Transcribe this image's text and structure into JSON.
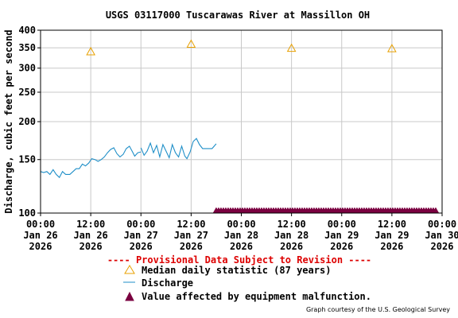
{
  "chart_data": {
    "type": "line",
    "title": "USGS 03117000 Tuscarawas River at Massillon OH",
    "ylabel": "Discharge, cubic feet per second",
    "ylim": [
      100,
      400
    ],
    "y_scale": "log",
    "y_ticks": [
      100,
      150,
      200,
      250,
      300,
      350,
      400
    ],
    "xlim": [
      "2026-01-26 00:00",
      "2026-01-30 00:00"
    ],
    "x_ticks": [
      {
        "time": "00:00",
        "date": "Jan 26",
        "year": "2026"
      },
      {
        "time": "12:00",
        "date": "Jan 26",
        "year": "2026"
      },
      {
        "time": "00:00",
        "date": "Jan 27",
        "year": "2026"
      },
      {
        "time": "12:00",
        "date": "Jan 27",
        "year": "2026"
      },
      {
        "time": "00:00",
        "date": "Jan 28",
        "year": "2026"
      },
      {
        "time": "12:00",
        "date": "Jan 28",
        "year": "2026"
      },
      {
        "time": "00:00",
        "date": "Jan 29",
        "year": "2026"
      },
      {
        "time": "12:00",
        "date": "Jan 29",
        "year": "2026"
      },
      {
        "time": "00:00",
        "date": "Jan 30",
        "year": "2026"
      }
    ],
    "grid": true,
    "series": [
      {
        "name": "Discharge",
        "color": "#1f8fc8",
        "segments": [
          [
            [
              "2026-01-26 00:00",
              137
            ],
            [
              "2026-01-26 00:45",
              136
            ],
            [
              "2026-01-26 01:30",
              137
            ],
            [
              "2026-01-26 02:15",
              134
            ],
            [
              "2026-01-26 03:00",
              139
            ],
            [
              "2026-01-26 03:45",
              134
            ],
            [
              "2026-01-26 04:30",
              131
            ],
            [
              "2026-01-26 05:15",
              137
            ],
            [
              "2026-01-26 06:00",
              134
            ],
            [
              "2026-01-26 07:00",
              134
            ],
            [
              "2026-01-26 07:45",
              137
            ],
            [
              "2026-01-26 08:30",
              140
            ],
            [
              "2026-01-26 09:15",
              140
            ],
            [
              "2026-01-26 10:00",
              145
            ],
            [
              "2026-01-26 10:45",
              143
            ],
            [
              "2026-01-26 11:30",
              146
            ],
            [
              "2026-01-26 12:15",
              151
            ],
            [
              "2026-01-26 13:00",
              150
            ],
            [
              "2026-01-26 13:45",
              148
            ],
            [
              "2026-01-26 14:30",
              150
            ],
            [
              "2026-01-26 15:15",
              153
            ],
            [
              "2026-01-26 16:00",
              158
            ],
            [
              "2026-01-26 16:45",
              162
            ],
            [
              "2026-01-26 17:30",
              164
            ],
            [
              "2026-01-26 18:15",
              157
            ],
            [
              "2026-01-26 19:00",
              153
            ],
            [
              "2026-01-26 19:45",
              156
            ],
            [
              "2026-01-26 20:30",
              163
            ],
            [
              "2026-01-26 21:15",
              166
            ],
            [
              "2026-01-26 22:00",
              159
            ],
            [
              "2026-01-26 22:30",
              154
            ],
            [
              "2026-01-26 23:15",
              158
            ],
            [
              "2026-01-27 00:00",
              159
            ]
          ],
          [
            [
              "2026-01-27 00:00",
              164
            ],
            [
              "2026-01-27 00:45",
              155
            ],
            [
              "2026-01-27 01:30",
              160
            ],
            [
              "2026-01-27 02:15",
              170
            ],
            [
              "2026-01-27 03:00",
              158
            ],
            [
              "2026-01-27 03:45",
              167
            ],
            [
              "2026-01-27 04:30",
              153
            ],
            [
              "2026-01-27 05:15",
              168
            ],
            [
              "2026-01-27 06:00",
              160
            ],
            [
              "2026-01-27 06:45",
              152
            ],
            [
              "2026-01-27 07:30",
              168
            ],
            [
              "2026-01-27 08:15",
              158
            ],
            [
              "2026-01-27 09:00",
              153
            ],
            [
              "2026-01-27 09:45",
              166
            ],
            [
              "2026-01-27 10:30",
              154
            ],
            [
              "2026-01-27 11:00",
              151
            ],
            [
              "2026-01-27 11:45",
              159
            ],
            [
              "2026-01-27 12:30",
              172
            ],
            [
              "2026-01-27 13:15",
              176
            ],
            [
              "2026-01-27 14:00",
              168
            ],
            [
              "2026-01-27 14:45",
              163
            ],
            [
              "2026-01-27 15:30",
              163
            ],
            [
              "2026-01-27 16:15",
              163
            ],
            [
              "2026-01-27 17:00",
              163
            ],
            [
              "2026-01-27 18:00",
              169
            ]
          ]
        ]
      },
      {
        "name": "Median daily statistic (87 years)",
        "color": "#e8a000",
        "marker": "triangle-open",
        "points": [
          [
            "2026-01-26 12:00",
            340
          ],
          [
            "2026-01-27 12:00",
            360
          ],
          [
            "2026-01-28 12:00",
            349
          ],
          [
            "2026-01-29 12:00",
            348
          ]
        ]
      },
      {
        "name": "Value affected by equipment malfunction.",
        "color": "#7a0040",
        "marker": "triangle-filled",
        "range": [
          "2026-01-27 18:00",
          "2026-01-29 24:00"
        ],
        "value": 100
      }
    ]
  },
  "legend": {
    "provisional": "---- Provisional Data Subject to Revision ----",
    "median": "Median daily statistic (87 years)",
    "discharge": "Discharge",
    "equipment": "Value affected by equipment malfunction."
  },
  "credit": "Graph courtesy of the U.S. Geological Survey"
}
